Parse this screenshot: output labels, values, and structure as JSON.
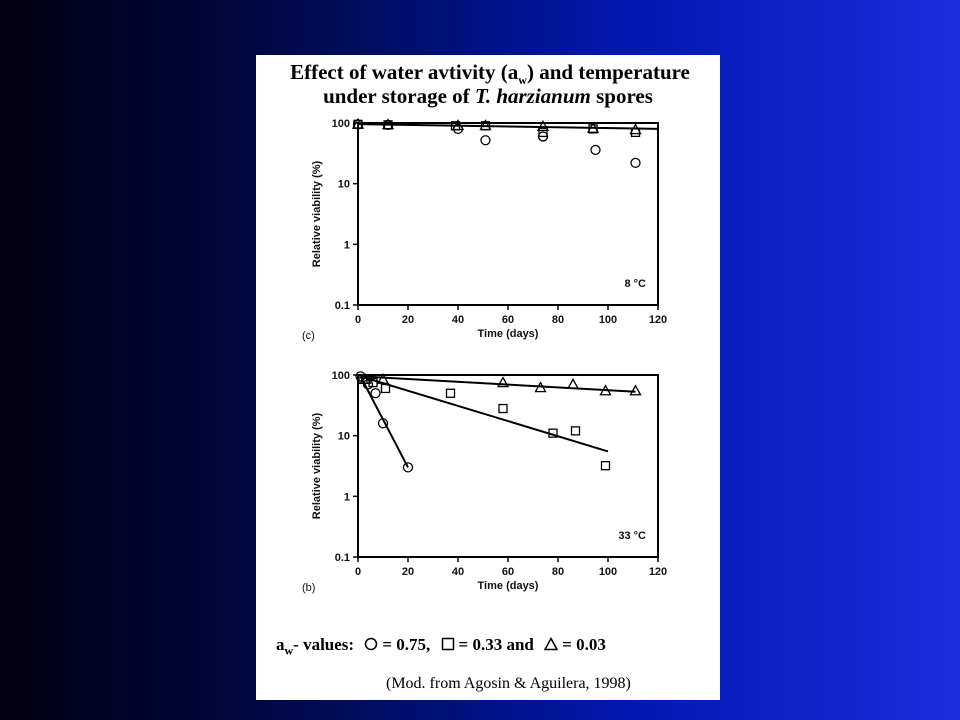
{
  "slide": {
    "title_line1_prefix": "Effect of water avtivity (a",
    "title_line1_sub": "w",
    "title_line1_suffix": ") and temperature",
    "title_line2_prefix": "under storage of ",
    "title_line2_italic": "T. harzianum",
    "title_line2_suffix": " spores",
    "legend_prefix": "a",
    "legend_sub": "w",
    "legend_label": "- values:",
    "legend_items": [
      {
        "symbol": "circle",
        "text": "= 0.75,"
      },
      {
        "symbol": "square",
        "text": "= 0.33 and"
      },
      {
        "symbol": "triangle",
        "text": "= 0.03"
      }
    ],
    "source": "(Mod. from Agosin & Aguilera, 1998)"
  },
  "chart_data": [
    {
      "type": "scatter",
      "panel_label": "(c)",
      "temperature_label": "8 °C",
      "xlabel": "Time (days)",
      "ylabel": "Relative viability (%)",
      "xlim": [
        0,
        120
      ],
      "ylim": [
        0.1,
        100
      ],
      "y_scale": "log",
      "x_ticks": [
        0,
        20,
        40,
        60,
        80,
        100,
        120
      ],
      "y_ticks": [
        0.1,
        1,
        10,
        100
      ],
      "y_tick_labels": [
        "0.1",
        "1",
        "10",
        "100"
      ],
      "series": [
        {
          "marker": "circle",
          "x": [
            0,
            12,
            40,
            51,
            74,
            95,
            111
          ],
          "y": [
            95,
            93,
            80,
            52,
            60,
            36,
            22
          ]
        },
        {
          "marker": "square",
          "x": [
            0,
            12,
            39,
            51,
            74,
            94,
            111
          ],
          "y": [
            95,
            93,
            90,
            90,
            70,
            80,
            70
          ]
        },
        {
          "marker": "triangle",
          "x": [
            0,
            12,
            40,
            51,
            74,
            94,
            111
          ],
          "y": [
            96,
            94,
            91,
            91,
            88,
            82,
            78
          ]
        }
      ],
      "trend_lines": [
        {
          "x": [
            0,
            120
          ],
          "y": [
            96,
            80
          ]
        }
      ]
    },
    {
      "type": "scatter",
      "panel_label": "(b)",
      "temperature_label": "33 °C",
      "xlabel": "Time (days)",
      "ylabel": "Relative viability (%)",
      "xlim": [
        0,
        120
      ],
      "ylim": [
        0.1,
        100
      ],
      "y_scale": "log",
      "x_ticks": [
        0,
        20,
        40,
        60,
        80,
        100,
        120
      ],
      "y_ticks": [
        0.1,
        1,
        10,
        100
      ],
      "y_tick_labels": [
        "0.1",
        "1",
        "10",
        "100"
      ],
      "series": [
        {
          "marker": "circle",
          "x": [
            1,
            4,
            7,
            10,
            20
          ],
          "y": [
            95,
            70,
            50,
            16,
            3
          ]
        },
        {
          "marker": "square",
          "x": [
            2,
            6,
            11,
            37,
            58,
            78,
            87,
            99
          ],
          "y": [
            85,
            75,
            60,
            50,
            28,
            11,
            12,
            3.2
          ]
        },
        {
          "marker": "triangle",
          "x": [
            3,
            10,
            58,
            73,
            86,
            99,
            111
          ],
          "y": [
            85,
            85,
            75,
            62,
            70,
            55,
            55
          ]
        }
      ],
      "trend_lines": [
        {
          "x": [
            1,
            20
          ],
          "y": [
            95,
            3
          ]
        },
        {
          "x": [
            1,
            100
          ],
          "y": [
            95,
            5.5
          ]
        },
        {
          "x": [
            1,
            111
          ],
          "y": [
            95,
            53
          ]
        }
      ]
    }
  ]
}
